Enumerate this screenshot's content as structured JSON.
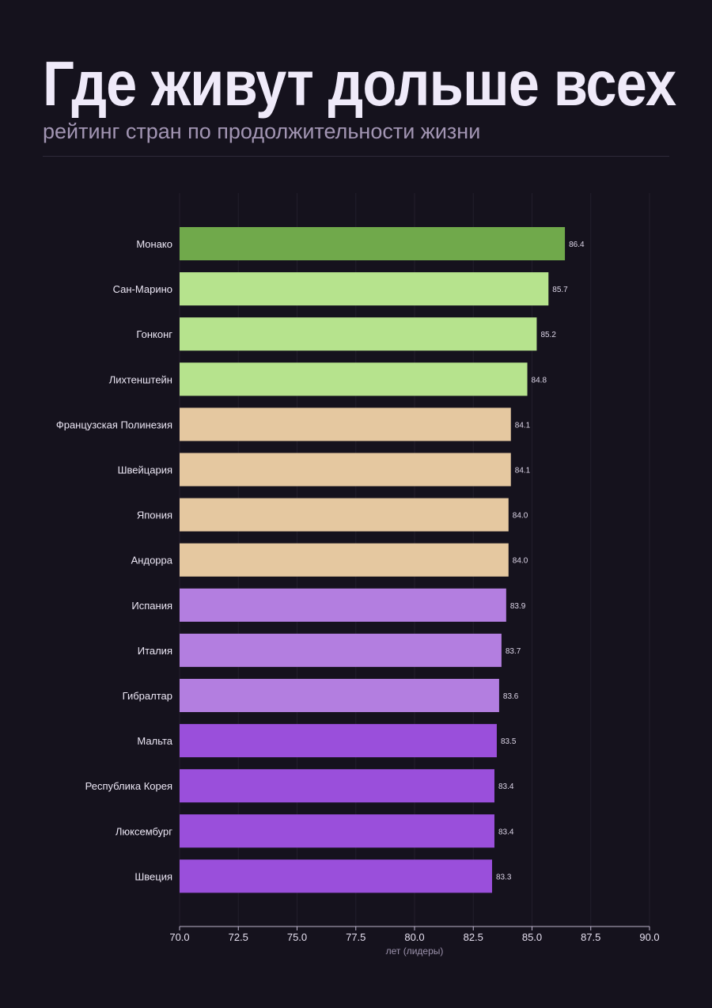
{
  "header": {
    "title": "Где живут дольше всех",
    "subtitle": "рейтинг стран по продолжительности жизни"
  },
  "chart_data": {
    "type": "bar",
    "orientation": "horizontal",
    "title": "Где живут дольше всех",
    "subtitle": "рейтинг стран по продолжительности жизни",
    "xlabel": "лет (лидеры)",
    "ylabel": "",
    "xlim": [
      70.0,
      90.0
    ],
    "xticks": [
      "70.0",
      "72.5",
      "75.0",
      "77.5",
      "80.0",
      "82.5",
      "85.0",
      "87.5",
      "90.0"
    ],
    "grid": "vertical",
    "categories": [
      "Монако",
      "Сан-Марино",
      "Гонконг",
      "Лихтенштейн",
      "Французская Полинезия",
      "Швейцария",
      "Япония",
      "Андорра",
      "Испания",
      "Италия",
      "Гибралтар",
      "Мальта",
      "Республика Корея",
      "Люксембург",
      "Швеция"
    ],
    "values": [
      86.4,
      85.7,
      85.2,
      84.8,
      84.1,
      84.1,
      84.0,
      84.0,
      83.9,
      83.7,
      83.6,
      83.5,
      83.4,
      83.4,
      83.3
    ],
    "labels": [
      "86.4",
      "85.7",
      "85.2",
      "84.8",
      "84.1",
      "84.1",
      "84.0",
      "84.0",
      "83.9",
      "83.7",
      "83.6",
      "83.5",
      "83.4",
      "83.4",
      "83.3"
    ],
    "colors": [
      "#70a94b",
      "#b6e38d",
      "#b6e38d",
      "#b6e38d",
      "#e5c8a0",
      "#e5c8a0",
      "#e5c8a0",
      "#e5c8a0",
      "#b37ee0",
      "#b37ee0",
      "#b37ee0",
      "#9a4fdb",
      "#9a4fdb",
      "#9a4fdb",
      "#9a4fdb"
    ]
  }
}
